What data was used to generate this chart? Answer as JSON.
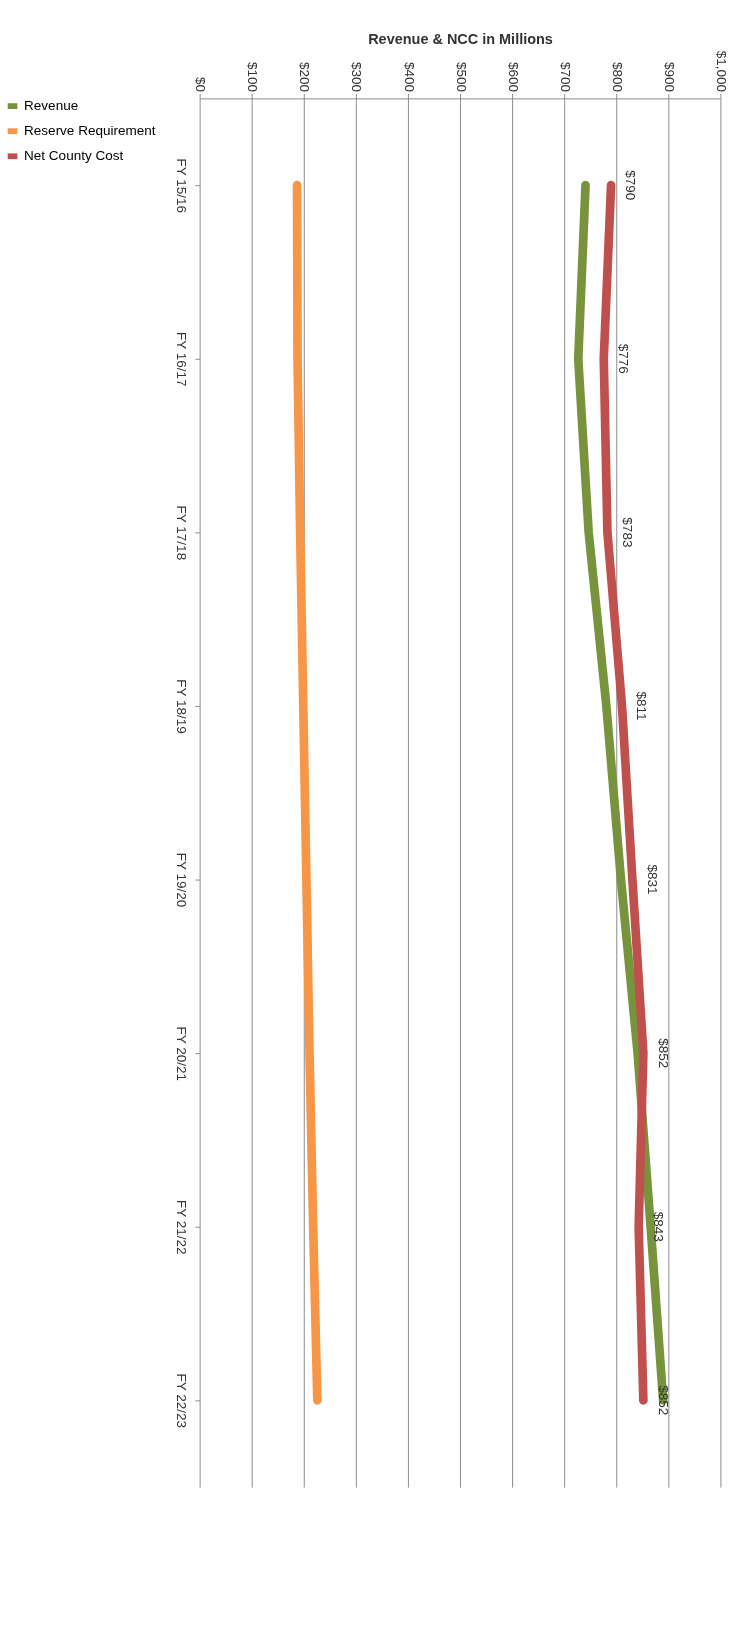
{
  "chart_data": {
    "type": "line",
    "orientation": "horizontal",
    "xlabel": "Revenue & NCC in Millions",
    "categories": [
      "FY 15/16",
      "FY 16/17",
      "FY 17/18",
      "FY 18/19",
      "FY 19/20",
      "FY 20/21",
      "FY 21/22",
      "FY 22/23"
    ],
    "series": [
      {
        "name": "Revenue",
        "color": "#77933c",
        "values": [
          741,
          727,
          747,
          781,
          809,
          841,
          866,
          890
        ]
      },
      {
        "name": "Reserve Requirement",
        "color": "#f79646",
        "values": [
          187,
          188,
          193,
          199,
          205,
          211,
          218,
          226
        ]
      },
      {
        "name": "Net County Cost",
        "color": "#c0504d",
        "values": [
          790,
          776,
          783,
          811,
          831,
          852,
          843,
          852
        ],
        "value_labels": [
          "$790",
          "$776",
          "$783",
          "$811",
          "$831",
          "$852",
          "$843",
          "$852"
        ]
      }
    ],
    "xlim": [
      0,
      1000
    ],
    "xticks": [
      {
        "value": 0,
        "label": "$0"
      },
      {
        "value": 100,
        "label": "$100"
      },
      {
        "value": 200,
        "label": "$200"
      },
      {
        "value": 300,
        "label": "$300"
      },
      {
        "value": 400,
        "label": "$400"
      },
      {
        "value": 500,
        "label": "$500"
      },
      {
        "value": 600,
        "label": "$600"
      },
      {
        "value": 700,
        "label": "$700"
      },
      {
        "value": 800,
        "label": "$800"
      },
      {
        "value": 900,
        "label": "$900"
      },
      {
        "value": 1000,
        "label": "$1,000"
      }
    ],
    "grid": "x",
    "legend": "left",
    "marker": "none",
    "line_style": "solid"
  }
}
